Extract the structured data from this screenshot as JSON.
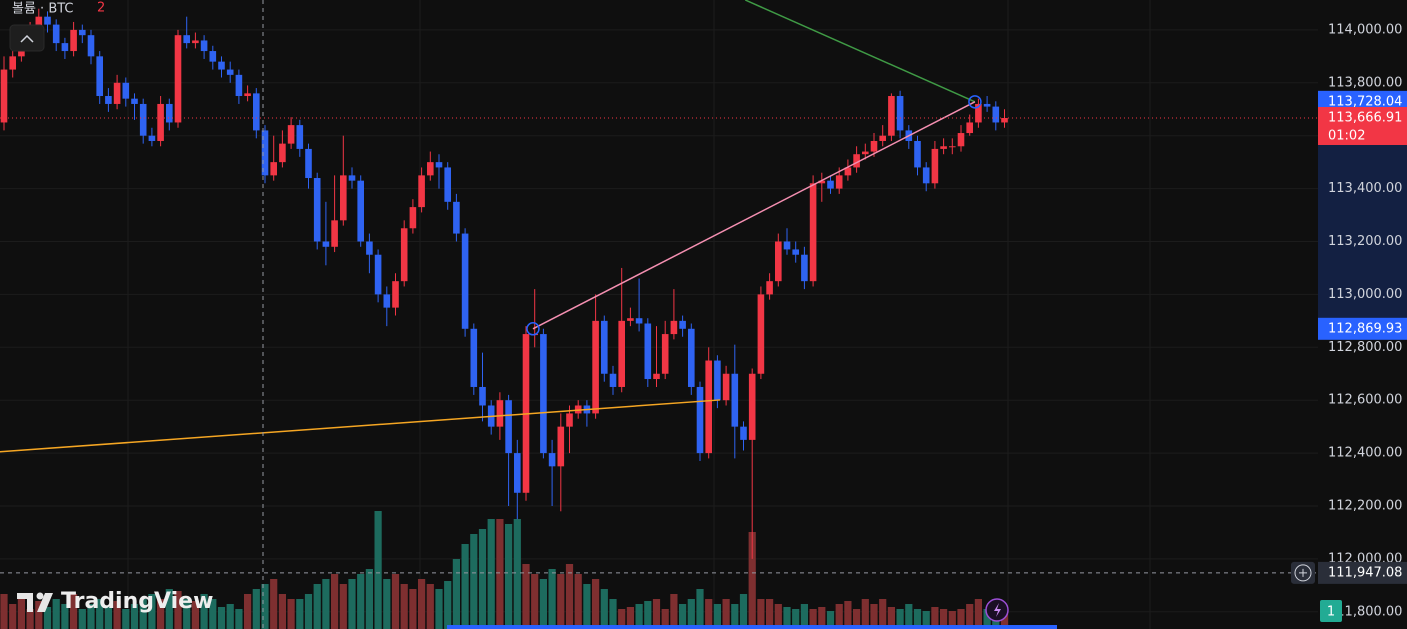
{
  "chart_data": {
    "type": "candlestick",
    "legend": {
      "title": "볼륨 · BTC",
      "count": 2
    },
    "watermark": "TradingView",
    "up_color": "#f23645",
    "down_color": "#2f63f2",
    "up_volume_color": "#7e2f30",
    "down_volume_color": "#1d6b5e",
    "ylim": [
      111735,
      114113
    ],
    "yticks": [
      {
        "value": 111800,
        "label": "111,800.00"
      },
      {
        "value": 112000,
        "label": "112,000.00"
      },
      {
        "value": 112200,
        "label": "112,200.00"
      },
      {
        "value": 112400,
        "label": "112,400.00"
      },
      {
        "value": 112600,
        "label": "112,600.00"
      },
      {
        "value": 112800,
        "label": "112,800.00"
      },
      {
        "value": 113000,
        "label": "113,000.00"
      },
      {
        "value": 113200,
        "label": "113,200.00"
      },
      {
        "value": 113400,
        "label": "113,400.00"
      },
      {
        "value": 113600,
        "label": "113,600.00"
      },
      {
        "value": 113800,
        "label": "113,800.00"
      },
      {
        "value": 114000,
        "label": "114,000.00"
      }
    ],
    "vlim": [
      0,
      150
    ],
    "open": [
      113650,
      113850,
      113900,
      113950,
      114000,
      114050,
      114020,
      113950,
      113920,
      114000,
      113980,
      113900,
      113750,
      113720,
      113800,
      113740,
      113720,
      113600,
      113580,
      113720,
      113650,
      113980,
      113950,
      113960,
      113920,
      113880,
      113850,
      113830,
      113750,
      113760,
      113620,
      113450,
      113500,
      113570,
      113640,
      113550,
      113440,
      113200,
      113180,
      113280,
      113450,
      113430,
      113200,
      113150,
      113000,
      112950,
      113050,
      113250,
      113330,
      113450,
      113500,
      113480,
      113350,
      113230,
      112870,
      112650,
      112580,
      112500,
      112600,
      112400,
      112250,
      112850,
      112850,
      112400,
      112350,
      112500,
      112550,
      112580,
      112550,
      112900,
      112700,
      112650,
      112900,
      112910,
      112890,
      112680,
      112700,
      112850,
      112900,
      112870,
      112650,
      112400,
      112750,
      112600,
      112700,
      112500,
      112450,
      112700,
      113000,
      113050,
      113200,
      113170,
      113150,
      113050,
      113420,
      113430,
      113400,
      113450,
      113480,
      113530,
      113540,
      113580,
      113600,
      113750,
      113620,
      113580,
      113480,
      113420,
      113550,
      113560,
      113560,
      113610,
      113650,
      113720,
      113710,
      113650
    ],
    "high": [
      113900,
      113930,
      113980,
      114030,
      114080,
      114070,
      114040,
      113970,
      114030,
      114020,
      114000,
      113920,
      113780,
      113830,
      113820,
      113760,
      113740,
      113630,
      113750,
      113740,
      114000,
      114050,
      113990,
      113980,
      113940,
      113900,
      113880,
      113850,
      113790,
      113780,
      113640,
      113600,
      113620,
      113670,
      113660,
      113570,
      113460,
      113350,
      113450,
      113600,
      113480,
      113450,
      113230,
      113170,
      113030,
      113080,
      113280,
      113360,
      113480,
      113540,
      113530,
      113500,
      113380,
      113250,
      112890,
      112780,
      112600,
      112630,
      112620,
      112450,
      112880,
      113020,
      112870,
      112450,
      112550,
      112580,
      112600,
      112600,
      113000,
      112920,
      112730,
      113100,
      112950,
      113060,
      112910,
      112880,
      112900,
      113020,
      112920,
      112890,
      112670,
      112800,
      112770,
      112730,
      112810,
      112520,
      112720,
      113030,
      113080,
      113230,
      113250,
      113200,
      113180,
      113450,
      113460,
      113450,
      113480,
      113510,
      113560,
      113570,
      113610,
      113640,
      113760,
      113770,
      113640,
      113600,
      113500,
      113580,
      113590,
      113590,
      113640,
      113680,
      113740,
      113750,
      113730,
      113700
    ],
    "low": [
      113620,
      113820,
      113880,
      113930,
      113980,
      113990,
      113920,
      113890,
      113900,
      113950,
      113870,
      113720,
      113690,
      113700,
      113710,
      113660,
      113570,
      113560,
      113560,
      113620,
      113630,
      113930,
      113930,
      113890,
      113850,
      113820,
      113800,
      113720,
      113730,
      113590,
      113420,
      113430,
      113480,
      113550,
      113520,
      113400,
      113170,
      113110,
      113160,
      113260,
      113400,
      113180,
      113080,
      112970,
      112880,
      112920,
      113030,
      113230,
      113310,
      113430,
      113400,
      113320,
      113200,
      112840,
      112620,
      112520,
      112470,
      112450,
      112200,
      112150,
      112220,
      112800,
      112380,
      112200,
      112180,
      112400,
      112530,
      112500,
      112530,
      112670,
      112620,
      112630,
      112880,
      112860,
      112650,
      112650,
      112680,
      112830,
      112840,
      112620,
      112370,
      112380,
      112570,
      112580,
      112380,
      112410,
      112000,
      112680,
      112980,
      113030,
      113150,
      113120,
      113020,
      113030,
      113350,
      113380,
      113380,
      113430,
      113460,
      113510,
      113520,
      113560,
      113580,
      113590,
      113550,
      113450,
      113390,
      113400,
      113530,
      113530,
      113540,
      113600,
      113630,
      113690,
      113620,
      113630
    ],
    "close": [
      113850,
      113900,
      113950,
      114000,
      114050,
      114020,
      113950,
      113920,
      114000,
      113980,
      113900,
      113750,
      113720,
      113800,
      113740,
      113720,
      113600,
      113580,
      113720,
      113650,
      113980,
      113950,
      113960,
      113920,
      113880,
      113850,
      113830,
      113750,
      113760,
      113620,
      113450,
      113500,
      113570,
      113640,
      113550,
      113440,
      113200,
      113180,
      113280,
      113450,
      113430,
      113200,
      113150,
      113000,
      112950,
      113050,
      113250,
      113330,
      113450,
      113500,
      113480,
      113350,
      113230,
      112870,
      112650,
      112580,
      112500,
      112600,
      112400,
      112250,
      112850,
      112850,
      112400,
      112350,
      112500,
      112550,
      112580,
      112550,
      112900,
      112700,
      112650,
      112900,
      112910,
      112890,
      112680,
      112700,
      112850,
      112900,
      112870,
      112650,
      112400,
      112750,
      112600,
      112700,
      112500,
      112450,
      112700,
      113000,
      113050,
      113200,
      113170,
      113150,
      113050,
      113420,
      113430,
      113400,
      113450,
      113480,
      113530,
      113540,
      113580,
      113600,
      113750,
      113620,
      113580,
      113480,
      113420,
      113550,
      113560,
      113560,
      113610,
      113650,
      113720,
      113710,
      113650,
      113666.91
    ],
    "volume": [
      35,
      25,
      30,
      20,
      28,
      22,
      30,
      25,
      35,
      20,
      25,
      30,
      22,
      28,
      20,
      25,
      30,
      35,
      30,
      40,
      38,
      30,
      28,
      35,
      30,
      22,
      25,
      20,
      35,
      40,
      45,
      50,
      35,
      30,
      30,
      35,
      45,
      50,
      55,
      45,
      50,
      55,
      60,
      118,
      50,
      55,
      45,
      40,
      50,
      45,
      40,
      48,
      70,
      85,
      95,
      100,
      110,
      110,
      105,
      110,
      65,
      55,
      50,
      60,
      55,
      65,
      55,
      45,
      50,
      40,
      30,
      20,
      22,
      25,
      28,
      30,
      20,
      35,
      25,
      30,
      40,
      30,
      25,
      30,
      25,
      35,
      97,
      30,
      30,
      25,
      22,
      20,
      25,
      20,
      22,
      18,
      25,
      28,
      20,
      30,
      25,
      30,
      22,
      20,
      25,
      20,
      18,
      22,
      20,
      18,
      20,
      25,
      30,
      20,
      18,
      15
    ],
    "trendlines": [
      {
        "color": "#3f9a45",
        "from": {
          "x": 85.2,
          "price": 114113
        },
        "to": {
          "x": 111.6,
          "price": 113728.04
        }
      },
      {
        "color": "#f48fb1",
        "from": {
          "x": 60.8,
          "price": 112869.93
        },
        "to": {
          "x": 111.6,
          "price": 113728.04
        }
      },
      {
        "color": "#f5a623",
        "from": {
          "x": -0.46,
          "price": 112405
        },
        "to": {
          "x": 82.3,
          "price": 112601
        }
      }
    ],
    "price_labels": [
      {
        "value": 113728.04,
        "label": "113,728.04",
        "color": "#2962ff"
      },
      {
        "value": 113666.91,
        "label": "113,666.91",
        "color": "#f23645"
      },
      {
        "value": 112869.93,
        "label": "112,869.93",
        "color": "#2962ff"
      },
      {
        "value": 111947.08,
        "label": "111,947.08",
        "color": "#2a2e39"
      }
    ],
    "countdown": "01:02",
    "volume_badge": 1
  }
}
